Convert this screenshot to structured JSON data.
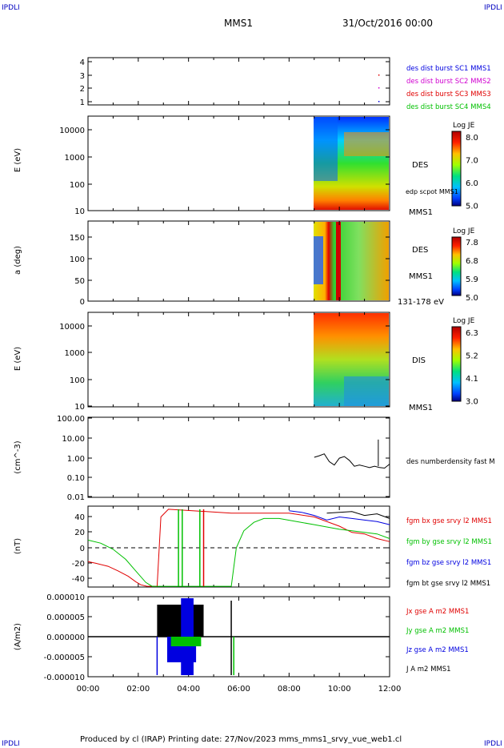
{
  "corners": {
    "tl": "IPDLI",
    "tr": "IPDLI",
    "bl": "IPDLI",
    "br": "IPDLI"
  },
  "header": {
    "mission": "MMS1",
    "date": "31/Oct/2016 00:00"
  },
  "footer": {
    "text": "Produced by cl (IRAP)   Printing date: 27/Nov/2023   mms_mms1_srvy_vue_web1.cl"
  },
  "colors": {
    "red": "#e00000",
    "magenta": "#d000d0",
    "blue": "#0000e0",
    "green": "#00c000",
    "black": "#000000"
  },
  "chart_data": [
    {
      "id": "burst",
      "type": "scatter",
      "yticks": [
        "1",
        "2",
        "3",
        "4"
      ],
      "ylim": [
        0.7,
        4.4
      ],
      "legend": [
        {
          "label": "des dist burst SC1 MMS1",
          "color": "#0000e0"
        },
        {
          "label": "des dist burst SC2 MMS2",
          "color": "#d000d0"
        },
        {
          "label": "des dist burst SC3 MMS3",
          "color": "#e00000"
        },
        {
          "label": "des dist burst SC4 MMS4",
          "color": "#00c000"
        }
      ],
      "points": [
        {
          "x": 11.55,
          "y": 3.0,
          "color": "#e00000"
        },
        {
          "x": 11.55,
          "y": 2.0,
          "color": "#d000d0"
        },
        {
          "x": 11.55,
          "y": 1.0,
          "color": "#0000e0"
        }
      ]
    },
    {
      "id": "des_energy",
      "type": "heatmap",
      "ylabel": "E (eV)",
      "yticks": [
        "10",
        "100",
        "1000",
        "10000"
      ],
      "labels": [
        "DES",
        "edp scpot MMS1",
        "MMS1"
      ],
      "colorbar": {
        "title": "Log JE",
        "ticks": [
          "8.0",
          "7.0",
          "6.0",
          "5.0"
        ]
      },
      "data_start_hour": 8.9
    },
    {
      "id": "des_pitch",
      "type": "heatmap",
      "ylabel": "a (deg)",
      "yticks": [
        "0",
        "50",
        "100",
        "150"
      ],
      "labels": [
        "DES",
        "MMS1",
        "131-178 eV"
      ],
      "colorbar": {
        "title": "Log JE",
        "ticks": [
          "7.8",
          "6.8",
          "5.9",
          "5.0"
        ]
      },
      "data_start_hour": 8.9
    },
    {
      "id": "dis_energy",
      "type": "heatmap",
      "ylabel": "E (eV)",
      "yticks": [
        "10",
        "100",
        "1000",
        "10000"
      ],
      "labels": [
        "DIS",
        "MMS1"
      ],
      "colorbar": {
        "title": "Log JE",
        "ticks": [
          "6.3",
          "5.2",
          "4.1",
          "3.0"
        ]
      },
      "data_start_hour": 8.9
    },
    {
      "id": "density",
      "type": "line",
      "ylabel": "(cm^-3)",
      "yticks": [
        "0.01",
        "0.10",
        "1.00",
        "10.00",
        "100.00"
      ],
      "legend": [
        {
          "label": "des numberdensity fast M",
          "color": "#000000"
        }
      ],
      "series": [
        {
          "x": [
            9.0,
            9.2,
            9.4,
            9.6,
            9.8,
            10.0,
            10.2,
            10.4,
            10.6,
            10.8,
            11.0,
            11.2,
            11.4,
            11.6,
            11.8,
            12.0
          ],
          "y": [
            1.0,
            1.2,
            1.5,
            0.6,
            0.4,
            0.9,
            1.1,
            0.7,
            0.35,
            0.4,
            0.35,
            0.3,
            0.35,
            0.3,
            0.28,
            0.45
          ]
        }
      ]
    },
    {
      "id": "bfield",
      "type": "line",
      "ylabel": "(nT)",
      "yticks": [
        "-40",
        "-20",
        "0",
        "20",
        "40"
      ],
      "ylim": [
        -50,
        50
      ],
      "legend": [
        {
          "label": "fgm bx gse srvy l2 MMS1",
          "color": "#e00000"
        },
        {
          "label": "fgm by gse srvy l2 MMS1",
          "color": "#00c000"
        },
        {
          "label": "fgm bz gse srvy l2 MMS1",
          "color": "#0000e0"
        },
        {
          "label": "fgm bt gse srvy l2 MMS1",
          "color": "#000000"
        }
      ],
      "series": [
        {
          "color": "#e00000",
          "x": [
            0,
            0.3,
            0.8,
            1.2,
            1.6,
            1.9,
            2.1,
            2.35,
            2.75,
            2.9,
            3.2,
            5.7,
            8.0,
            9.0,
            10.0,
            10.5,
            11.0,
            11.5,
            12.0
          ],
          "y": [
            -18,
            -20,
            -24,
            -30,
            -37,
            -44,
            -48,
            -50,
            -50,
            40,
            50,
            45,
            45,
            40,
            28,
            20,
            18,
            12,
            8
          ]
        },
        {
          "color": "#00c000",
          "x": [
            0,
            0.5,
            1.0,
            1.5,
            1.9,
            2.3,
            2.55,
            5.7,
            5.9,
            6.2,
            6.6,
            7.0,
            7.6,
            8.3,
            9.0,
            10.0,
            10.5,
            11.0,
            11.5,
            12.0
          ],
          "y": [
            10,
            6,
            -2,
            -15,
            -30,
            -45,
            -50,
            -50,
            0,
            22,
            33,
            38,
            38,
            34,
            30,
            24,
            22,
            20,
            18,
            12
          ]
        },
        {
          "color": "#0000e0",
          "x": [
            8.0,
            8.5,
            9.0,
            9.5,
            10.0,
            10.5,
            11.0,
            11.5,
            12.0
          ],
          "y": [
            48,
            46,
            42,
            36,
            40,
            38,
            36,
            34,
            30
          ]
        },
        {
          "color": "#000000",
          "x": [
            9.5,
            10.0,
            10.5,
            11.0,
            11.5,
            12.0
          ],
          "y": [
            45,
            46,
            47,
            42,
            44,
            38
          ]
        }
      ]
    },
    {
      "id": "current",
      "type": "line",
      "ylabel": "(A/m2)",
      "yticks": [
        "-0.000010",
        "-0.000005",
        "0.000000",
        "0.000005",
        "0.000010"
      ],
      "ylim": [
        -1e-05,
        1e-05
      ],
      "legend": [
        {
          "label": "Jx gse A m2 MMS1",
          "color": "#e00000"
        },
        {
          "label": "Jy gse A m2 MMS1",
          "color": "#00c000"
        },
        {
          "label": "Jz gse A m2 MMS1",
          "color": "#0000e0"
        },
        {
          "label": "J A m2 MMS1",
          "color": "#000000"
        }
      ]
    }
  ],
  "xaxis": {
    "ticks": [
      "00:00",
      "02:00",
      "04:00",
      "06:00",
      "08:00",
      "10:00",
      "12:00"
    ],
    "range": [
      0,
      12
    ]
  }
}
